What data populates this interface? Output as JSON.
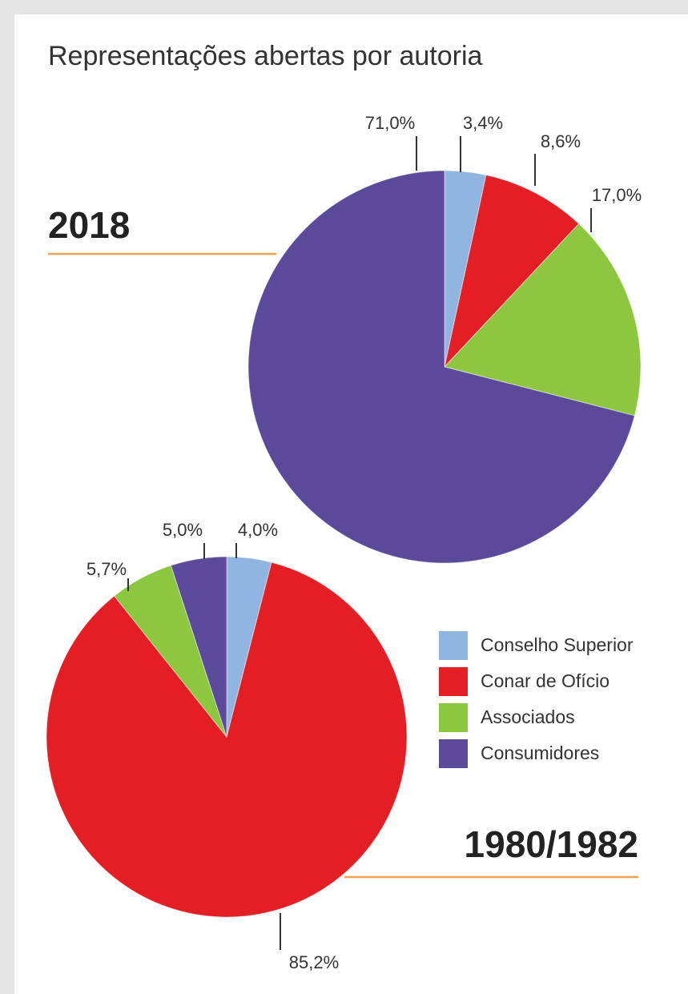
{
  "title": "Representações abertas por autoria",
  "chart_data": [
    {
      "type": "pie",
      "title": "2018",
      "categories": [
        "Conselho Superior",
        "Conar de Ofício",
        "Associados",
        "Consumidores"
      ],
      "values": [
        3.4,
        8.6,
        17.0,
        71.0
      ],
      "value_labels": [
        "3,4%",
        "8,6%",
        "17,0%",
        "71,0%"
      ],
      "colors": [
        "#8fb5e0",
        "#e31e24",
        "#8dc63f",
        "#5b4a99"
      ]
    },
    {
      "type": "pie",
      "title": "1980/1982",
      "categories": [
        "Conselho Superior",
        "Conar de Ofício",
        "Associados",
        "Consumidores"
      ],
      "values": [
        4.0,
        85.2,
        5.7,
        5.0
      ],
      "value_labels": [
        "4,0%",
        "85,2%",
        "5,7%",
        "5,0%"
      ],
      "colors": [
        "#8fb5e0",
        "#e31e24",
        "#8dc63f",
        "#5b4a99"
      ]
    }
  ]
}
